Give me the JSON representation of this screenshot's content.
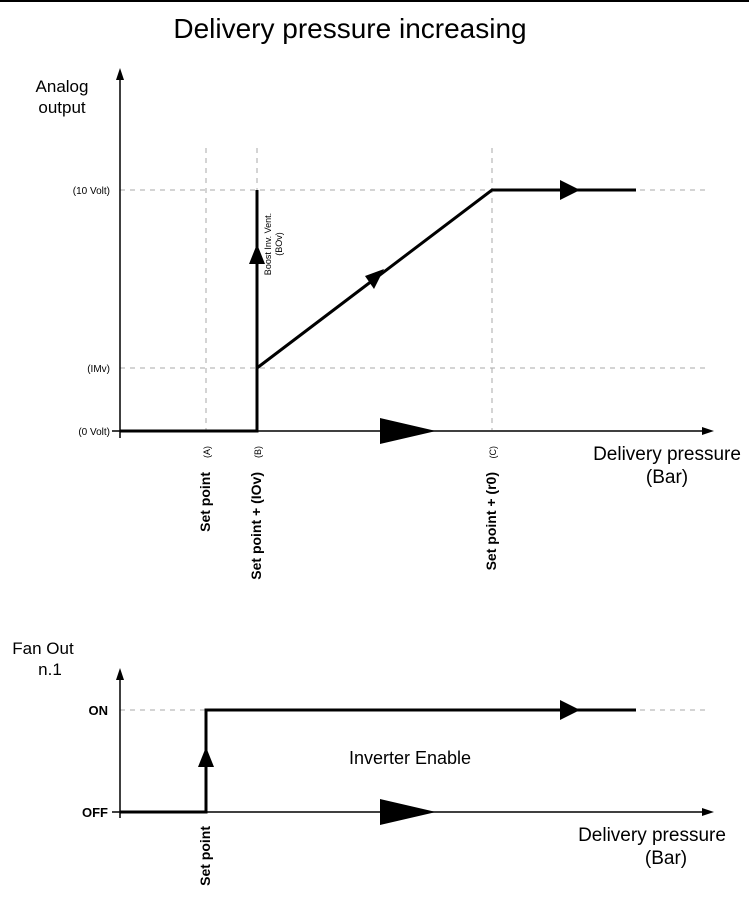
{
  "title": "Delivery pressure increasing",
  "top_chart": {
    "y_axis_label_line1": "Analog",
    "y_axis_label_line2": "output",
    "x_axis_label_line1": "Delivery pressure",
    "x_axis_label_line2": "(Bar)",
    "y_ticks": {
      "ten_volt": "(10 Volt)",
      "imv": "(IMv)",
      "zero_volt": "(0 Volt)"
    },
    "x_ticks": {
      "a": {
        "label": "Set point",
        "code": "(A)"
      },
      "b": {
        "label": "Set point + (IOv)",
        "code": "(B)"
      },
      "c": {
        "label": "Set point + (r0)",
        "code": "(C)"
      }
    },
    "boost_label_line1": "Boost Inv. Vent.",
    "boost_label_line2": "(BOv)"
  },
  "bottom_chart": {
    "y_axis_label_line1": "Fan Out",
    "y_axis_label_line2": "n.1",
    "x_axis_label_line1": "Delivery pressure",
    "x_axis_label_line2": "(Bar)",
    "y_ticks": {
      "on": "ON",
      "off": "OFF"
    },
    "x_tick": "Set point",
    "center_label": "Inverter Enable"
  }
}
